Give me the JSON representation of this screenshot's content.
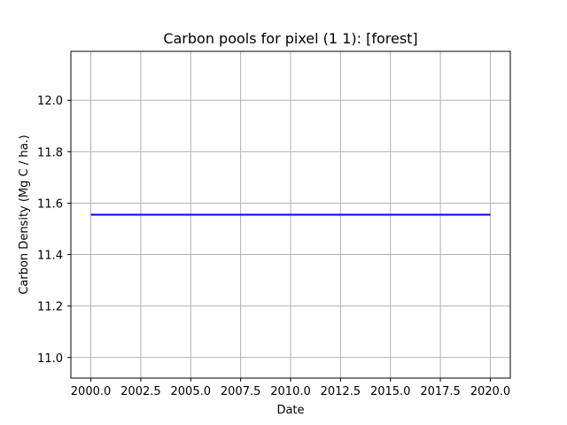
{
  "chart_data": {
    "type": "line",
    "title": "Carbon pools for pixel (1 1): [forest]",
    "xlabel": "Date",
    "ylabel": "Carbon Density (Mg C / ha.)",
    "xlim": [
      1999.0,
      2021.0
    ],
    "ylim": [
      10.92,
      12.19
    ],
    "grid": true,
    "x_ticks": [
      2000.0,
      2002.5,
      2005.0,
      2007.5,
      2010.0,
      2012.5,
      2015.0,
      2017.5,
      2020.0
    ],
    "x_tick_labels": [
      "2000.0",
      "2002.5",
      "2005.0",
      "2007.5",
      "2010.0",
      "2012.5",
      "2015.0",
      "2017.5",
      "2020.0"
    ],
    "y_ticks": [
      11.0,
      11.2,
      11.4,
      11.6,
      11.8,
      12.0
    ],
    "y_tick_labels": [
      "11.0",
      "11.2",
      "11.4",
      "11.6",
      "11.8",
      "12.0"
    ],
    "series": [
      {
        "name": "forest",
        "color": "#0000ff",
        "x": [
          2000,
          2001,
          2002,
          2003,
          2004,
          2005,
          2006,
          2007,
          2008,
          2009,
          2010,
          2011,
          2012,
          2013,
          2014,
          2015,
          2016,
          2017,
          2018,
          2019,
          2020
        ],
        "y": [
          11.555,
          11.555,
          11.555,
          11.555,
          11.555,
          11.555,
          11.555,
          11.555,
          11.555,
          11.555,
          11.555,
          11.555,
          11.555,
          11.555,
          11.555,
          11.555,
          11.555,
          11.555,
          11.555,
          11.555,
          11.555
        ]
      }
    ]
  }
}
